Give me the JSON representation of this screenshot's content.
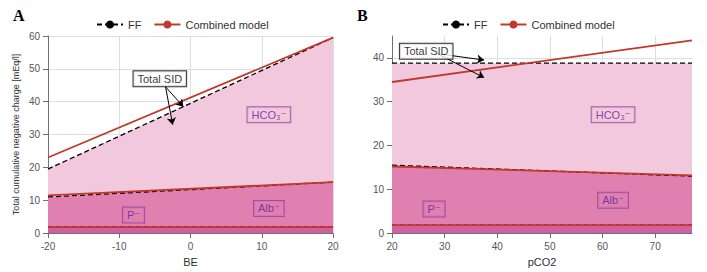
{
  "chart_data": [
    {
      "type": "line",
      "title": "A",
      "xlabel": "BE",
      "ylabel": "Total cumulative negative charge [mEq/l]",
      "x": [
        -20,
        20
      ],
      "xlim": [
        -20,
        20
      ],
      "xticks": [
        -20,
        -10,
        0,
        10,
        20
      ],
      "ylim": [
        0,
        60
      ],
      "yticks": [
        0,
        10,
        20,
        30,
        40,
        50,
        60
      ],
      "grid": true,
      "legend": "top",
      "series": [
        {
          "type": "area",
          "color": "#f2c8dc",
          "values": [
            19.5,
            59.5
          ]
        },
        {
          "type": "area",
          "color": "#e080b0",
          "values": [
            11.0,
            15.5
          ]
        },
        {
          "type": "area",
          "color": "#d060a0",
          "values": [
            1.8,
            1.8
          ]
        },
        {
          "name": "FF",
          "type": "line",
          "color": "#000000",
          "line_style": "dashed",
          "values": [
            19.5,
            59.5
          ]
        },
        {
          "name": "FF",
          "type": "line",
          "color": "#000000",
          "line_style": "dashed",
          "values": [
            11.0,
            15.5
          ]
        },
        {
          "name": "FF",
          "type": "line",
          "color": "#000000",
          "line_style": "dashed",
          "values": [
            1.8,
            1.8
          ]
        },
        {
          "name": "Combined model",
          "type": "line",
          "color": "#c0392b",
          "line_style": "solid",
          "values": [
            23.0,
            59.5
          ]
        },
        {
          "name": "Combined model",
          "type": "line",
          "color": "#c0392b",
          "line_style": "solid",
          "values": [
            11.5,
            15.5
          ]
        },
        {
          "name": "Combined model",
          "type": "line",
          "color": "#c0392b",
          "line_style": "solid",
          "values": [
            1.8,
            1.8
          ]
        }
      ],
      "annotations": [
        {
          "text": "HCO₃⁻",
          "x": 11,
          "y": 36,
          "color": "#f2c8dc"
        },
        {
          "text": "Alb⁻",
          "x": 11,
          "y": 7.5,
          "color": "#e080b0"
        },
        {
          "text": "P⁻",
          "x": -8,
          "y": 5.5,
          "color": "#e080b0"
        },
        {
          "text": "Total SID",
          "x": -8,
          "y": 47,
          "arrows": [
            {
              "from": [
                -3.5,
                44.5
              ],
              "to": [
                -1.0,
                38.5
              ]
            },
            {
              "from": [
                -3.5,
                44.5
              ],
              "to": [
                -2.5,
                33.0
              ]
            }
          ]
        }
      ]
    },
    {
      "type": "line",
      "title": "B",
      "xlabel": "pCO2",
      "x": [
        20,
        77
      ],
      "xlim": [
        20,
        77
      ],
      "xticks": [
        20,
        30,
        40,
        50,
        60,
        70
      ],
      "ylim": [
        0,
        45
      ],
      "yticks": [
        0,
        10,
        20,
        30,
        40
      ],
      "grid": true,
      "legend": "top",
      "series": [
        {
          "type": "area",
          "color": "#f2c8dc",
          "values": [
            38.8,
            38.8
          ]
        },
        {
          "type": "area",
          "color": "#e080b0",
          "values": [
            15.5,
            13.0
          ]
        },
        {
          "type": "area",
          "color": "#d060a0",
          "values": [
            1.8,
            1.8
          ]
        },
        {
          "name": "FF",
          "type": "line",
          "color": "#000000",
          "line_style": "dashed",
          "values": [
            38.8,
            38.8
          ]
        },
        {
          "name": "FF",
          "type": "line",
          "color": "#000000",
          "line_style": "dashed",
          "values": [
            15.5,
            13.0
          ]
        },
        {
          "name": "FF",
          "type": "line",
          "color": "#000000",
          "line_style": "dashed",
          "values": [
            1.8,
            1.8
          ]
        },
        {
          "name": "Combined model",
          "type": "line",
          "color": "#c0392b",
          "line_style": "solid",
          "values": [
            34.5,
            44.0
          ]
        },
        {
          "name": "Combined model",
          "type": "line",
          "color": "#c0392b",
          "line_style": "solid",
          "values": [
            15.2,
            13.2
          ]
        },
        {
          "name": "Combined model",
          "type": "line",
          "color": "#c0392b",
          "line_style": "solid",
          "values": [
            1.8,
            1.8
          ]
        }
      ],
      "annotations": [
        {
          "text": "HCO₃⁻",
          "x": 62,
          "y": 27,
          "color": "#f2c8dc"
        },
        {
          "text": "Alb⁻",
          "x": 62,
          "y": 7.5,
          "color": "#e080b0"
        },
        {
          "text": "P⁻",
          "x": 28,
          "y": 5.5,
          "color": "#e080b0"
        },
        {
          "text": "Total SID",
          "x": 21.5,
          "y": 41.5,
          "arrows": [
            {
              "from": [
                28.5,
                41.0
              ],
              "to": [
                37.5,
                39.5
              ]
            },
            {
              "from": [
                28.5,
                41.0
              ],
              "to": [
                37.5,
                35.5
              ]
            }
          ]
        }
      ]
    }
  ]
}
